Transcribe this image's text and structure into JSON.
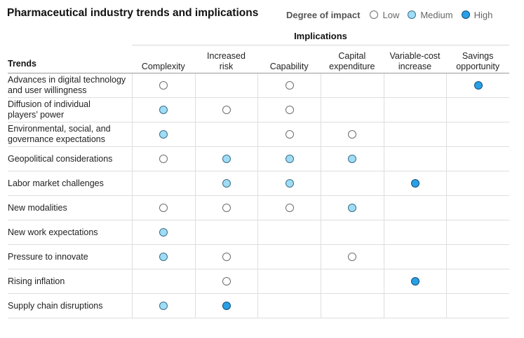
{
  "title": "Pharmaceutical industry trends and implications",
  "legend": {
    "title": "Degree of impact",
    "items": [
      {
        "level": "low",
        "label": "Low"
      },
      {
        "level": "medium",
        "label": "Medium"
      },
      {
        "level": "high",
        "label": "High"
      }
    ]
  },
  "colors": {
    "low": "#ffffff",
    "medium": "#9fdcf5",
    "high": "#28a0e6"
  },
  "table": {
    "group_header": "Implications",
    "row_header": "Trends",
    "columns": [
      "Complexity",
      "Increased\nrisk",
      "Capability",
      "Capital\nexpenditure",
      "Variable-cost\nincrease",
      "Savings\nopportunity"
    ],
    "rows": [
      {
        "label": "Advances in digital technology\nand user willingness",
        "impacts": [
          "low",
          "",
          "low",
          "",
          "",
          "high"
        ]
      },
      {
        "label": "Diffusion of individual\nplayers’ power",
        "impacts": [
          "medium",
          "low",
          "low",
          "",
          "",
          ""
        ]
      },
      {
        "label": "Environmental, social, and\ngovernance expectations",
        "impacts": [
          "medium",
          "",
          "low",
          "low",
          "",
          ""
        ]
      },
      {
        "label": "Geopolitical considerations",
        "impacts": [
          "low",
          "medium",
          "medium",
          "medium",
          "",
          ""
        ]
      },
      {
        "label": "Labor market challenges",
        "impacts": [
          "",
          "medium",
          "medium",
          "",
          "high",
          ""
        ]
      },
      {
        "label": "New modalities",
        "impacts": [
          "low",
          "low",
          "low",
          "medium",
          "",
          ""
        ]
      },
      {
        "label": "New work expectations",
        "impacts": [
          "medium",
          "",
          "",
          "",
          "",
          ""
        ]
      },
      {
        "label": "Pressure to innovate",
        "impacts": [
          "medium",
          "low",
          "",
          "low",
          "",
          ""
        ]
      },
      {
        "label": "Rising inflation",
        "impacts": [
          "",
          "low",
          "",
          "",
          "high",
          ""
        ]
      },
      {
        "label": "Supply chain disruptions",
        "impacts": [
          "medium",
          "high",
          "",
          "",
          "",
          ""
        ]
      }
    ]
  }
}
